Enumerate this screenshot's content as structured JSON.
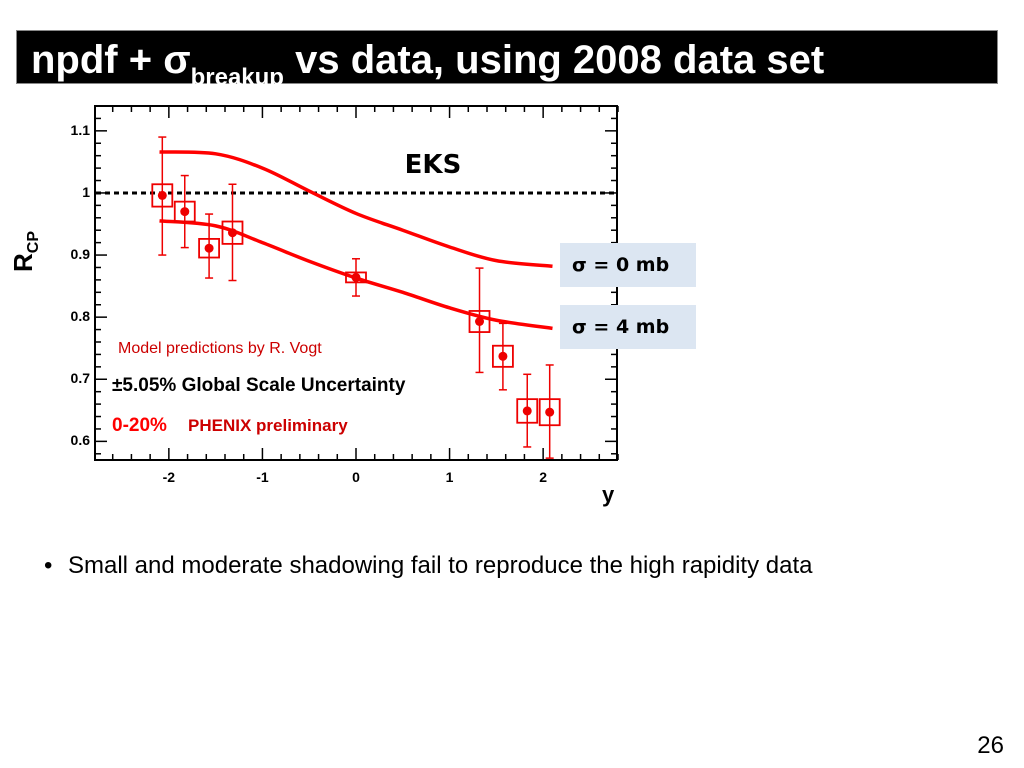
{
  "slide": {
    "title_main": "npdf + ",
    "title_sigma": "σ",
    "title_sub": "breakup",
    "title_rest": " vs data, using 2008 data set",
    "bullet": "Small and moderate shadowing fail to reproduce the high rapidity data",
    "page_number": "26"
  },
  "chart_data": {
    "type": "scatter",
    "title": "EKS",
    "ylabel": "R",
    "ylabel_sub": "CP",
    "xlabel": "y",
    "xlim": [
      -2.8,
      2.8
    ],
    "ylim": [
      0.57,
      1.14
    ],
    "x_ticks": [
      -2,
      -1,
      0,
      1,
      2
    ],
    "x_tick_labels": [
      "-2",
      "-1",
      "0",
      "1",
      "2"
    ],
    "y_ticks": [
      0.6,
      0.7,
      0.8,
      0.9,
      1.0,
      1.1
    ],
    "y_tick_labels": [
      "0.6",
      "0.7",
      "0.8",
      "0.9",
      "1",
      "1.1"
    ],
    "reference_line": 1.0,
    "annotations": {
      "model": "Model predictions by R. Vogt",
      "scale_uncertainty": "±5.05% Global Scale Uncertainty",
      "centrality": "0-20%",
      "collaboration": "PHENIX preliminary"
    },
    "data_points": [
      {
        "x": -2.07,
        "y": 0.996,
        "err_lo": 0.096,
        "err_hi": 0.094,
        "sys": 0.018
      },
      {
        "x": -1.83,
        "y": 0.97,
        "err_lo": 0.058,
        "err_hi": 0.058,
        "sys": 0.016
      },
      {
        "x": -1.57,
        "y": 0.911,
        "err_lo": 0.048,
        "err_hi": 0.055,
        "sys": 0.015
      },
      {
        "x": -1.32,
        "y": 0.936,
        "err_lo": 0.077,
        "err_hi": 0.078,
        "sys": 0.018
      },
      {
        "x": 0.0,
        "y": 0.864,
        "err_lo": 0.03,
        "err_hi": 0.03,
        "sys": 0.008
      },
      {
        "x": 1.32,
        "y": 0.793,
        "err_lo": 0.082,
        "err_hi": 0.086,
        "sys": 0.017
      },
      {
        "x": 1.57,
        "y": 0.737,
        "err_lo": 0.054,
        "err_hi": 0.053,
        "sys": 0.017
      },
      {
        "x": 1.83,
        "y": 0.649,
        "err_lo": 0.058,
        "err_hi": 0.059,
        "sys": 0.019
      },
      {
        "x": 2.07,
        "y": 0.647,
        "err_lo": 0.074,
        "err_hi": 0.076,
        "sys": 0.021
      }
    ],
    "series": [
      {
        "name": "σ = 0 mb",
        "x": [
          -2.1,
          -1.5,
          -1.0,
          -0.5,
          0.0,
          0.5,
          1.0,
          1.5,
          2.1
        ],
        "y": [
          1.066,
          1.063,
          1.04,
          1.003,
          0.967,
          0.94,
          0.913,
          0.891,
          0.882
        ]
      },
      {
        "name": "σ = 4 mb",
        "x": [
          -2.1,
          -1.5,
          -1.0,
          -0.5,
          0.0,
          0.5,
          1.0,
          1.5,
          2.1
        ],
        "y": [
          0.955,
          0.947,
          0.92,
          0.89,
          0.863,
          0.84,
          0.815,
          0.795,
          0.782
        ]
      }
    ],
    "colors": {
      "model": "#ff0000",
      "data": "#ee0000",
      "axis": "#000000",
      "legend_bg": "#dce6f2",
      "model_text": "#cc0000",
      "phenix": "#cc0000"
    }
  }
}
